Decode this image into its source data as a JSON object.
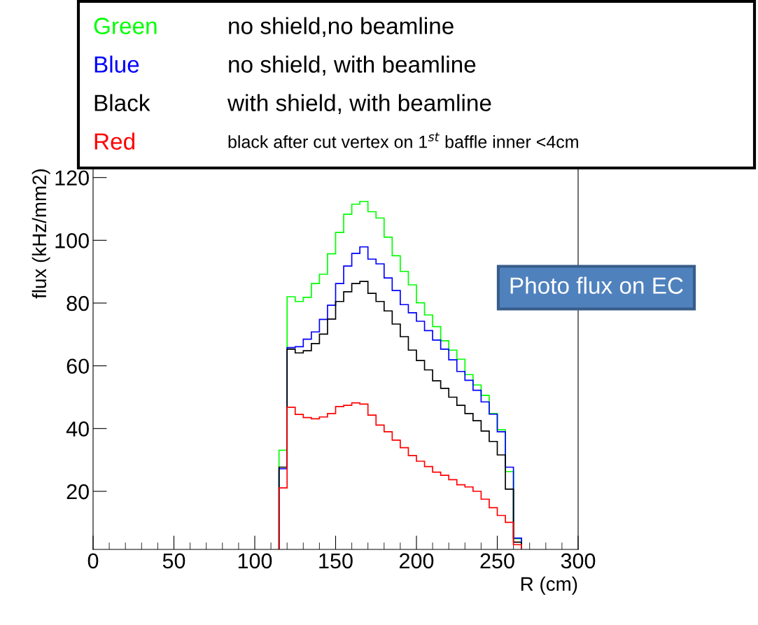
{
  "chart_data": {
    "type": "histogram",
    "xlabel": "R (cm)",
    "ylabel": "flux (kHz/mm2)",
    "bins": [
      115,
      120,
      125,
      130,
      135,
      140,
      145,
      150,
      155,
      160,
      165,
      170,
      175,
      180,
      185,
      190,
      195,
      200,
      205,
      210,
      215,
      220,
      225,
      230,
      235,
      240,
      245,
      250,
      255,
      260,
      265
    ],
    "series": [
      {
        "name": "Green",
        "color": "#00ff00",
        "values": [
          33.1,
          82.0,
          80.5,
          81.8,
          86.2,
          89.2,
          95.7,
          102.5,
          108.3,
          111.5,
          112.4,
          109.1,
          107.1,
          101.0,
          95.1,
          90.1,
          85.8,
          80.1,
          76.2,
          72.5,
          68.0,
          65.0,
          62.1,
          57.2,
          53.9,
          50.6,
          44.8,
          39.6,
          26.3,
          4.9
        ]
      },
      {
        "name": "Blue",
        "color": "#0000ff",
        "values": [
          27.2,
          65.8,
          66.1,
          68.5,
          70.8,
          74.8,
          79.3,
          86.2,
          91.8,
          95.8,
          97.9,
          94.0,
          92.5,
          88.0,
          84.0,
          79.5,
          76.9,
          74.2,
          71.2,
          68.2,
          65.3,
          61.9,
          58.2,
          55.4,
          52.2,
          48.5,
          44.6,
          39.0,
          27.7,
          5.1
        ]
      },
      {
        "name": "Black",
        "color": "#000000",
        "values": [
          27.7,
          65.3,
          64.1,
          64.8,
          67.1,
          70.1,
          74.9,
          80.5,
          83.6,
          86.2,
          86.9,
          83.1,
          80.5,
          77.5,
          73.3,
          69.3,
          65.0,
          61.7,
          58.7,
          55.2,
          52.8,
          50.0,
          47.4,
          44.8,
          42.5,
          39.2,
          35.9,
          31.6,
          20.7,
          3.8
        ]
      },
      {
        "name": "Red",
        "color": "#ff0000",
        "values": [
          21.1,
          46.8,
          44.5,
          43.5,
          43.1,
          43.7,
          44.8,
          47.0,
          47.4,
          48.2,
          47.8,
          44.3,
          41.1,
          39.0,
          36.3,
          33.9,
          31.4,
          29.6,
          27.9,
          26.1,
          25.1,
          23.7,
          22.1,
          21.4,
          20.0,
          17.5,
          14.8,
          12.3,
          10.1,
          3.0
        ]
      }
    ],
    "annotations": [
      "no shield,no beamline",
      "no shield, with beamline",
      "with shield, with beamline",
      "black after cut vertex on 1$^{st}$ baffle inner <4cm",
      "Photo flux on EC"
    ],
    "xlim": [
      0,
      300
    ],
    "xticks": [
      0,
      50,
      100,
      150,
      200,
      250,
      300
    ],
    "ylim": [
      1.5,
      123
    ],
    "yticks": [
      20,
      40,
      60,
      80,
      100,
      120
    ],
    "grid": false,
    "legend": "top"
  }
}
